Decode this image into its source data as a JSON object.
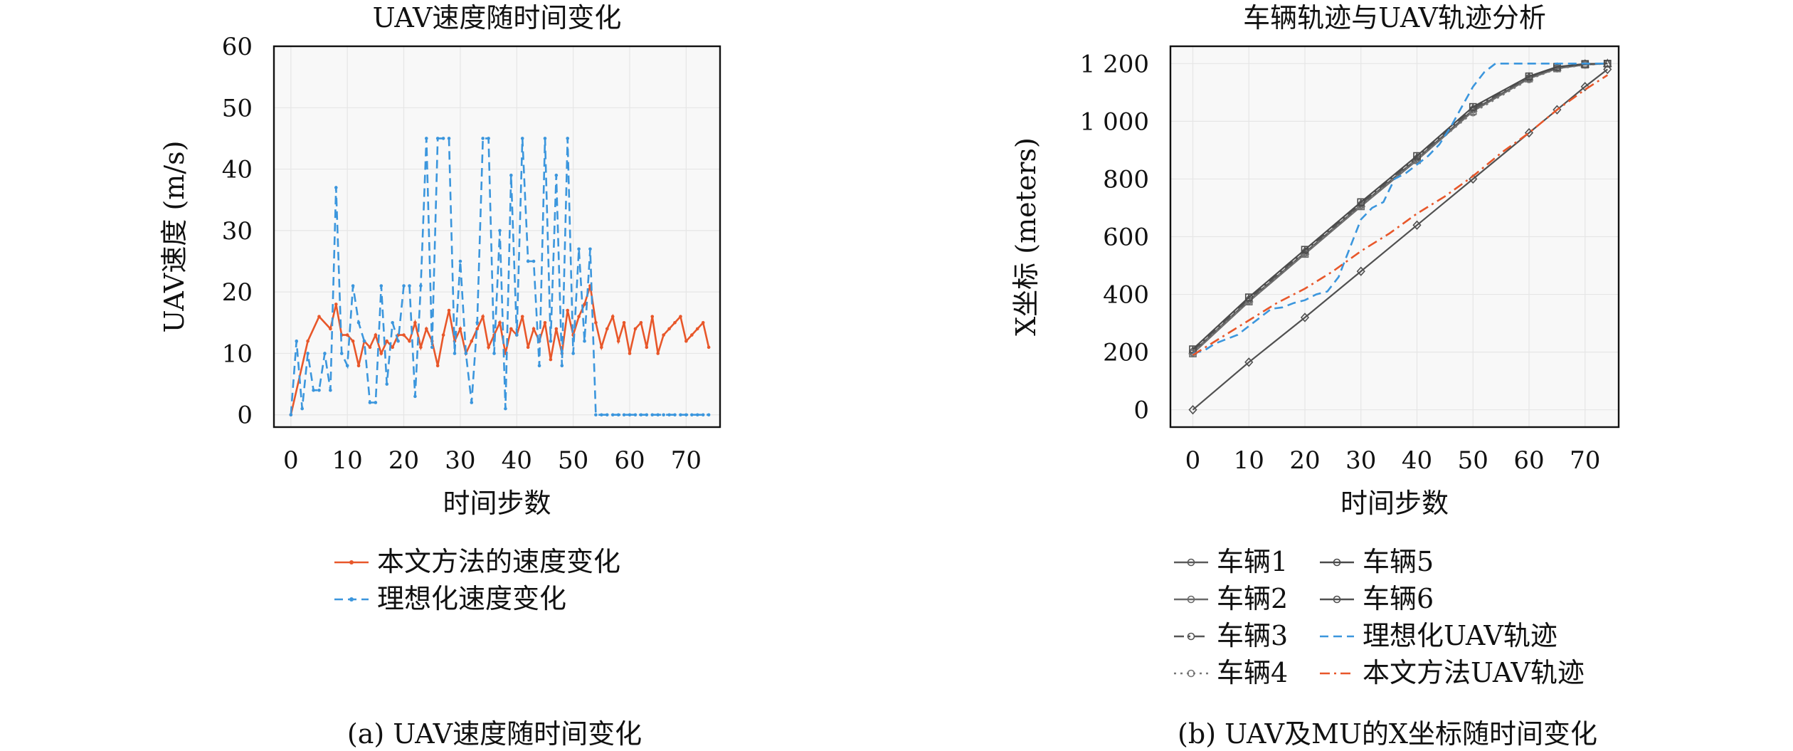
{
  "captions": {
    "a": "(a) UAV速度随时间变化",
    "b": "(b) UAV及MU的X坐标随时间变化"
  },
  "chart_data": [
    {
      "type": "line",
      "title": "UAV速度随时间变化",
      "xlabel": "时间步数",
      "ylabel": "UAV速度 (m/s)",
      "xlim": [
        -3,
        76
      ],
      "ylim": [
        -2,
        60
      ],
      "xticks": [
        0,
        10,
        20,
        30,
        40,
        50,
        60,
        70
      ],
      "yticks": [
        0,
        10,
        20,
        30,
        40,
        50,
        60
      ],
      "grid": true,
      "legend_position": "below",
      "series": [
        {
          "name": "本文方法的速度变化",
          "color": "#e8572a",
          "dash": "solid",
          "x": [
            0,
            3,
            5,
            7,
            8,
            9,
            10,
            11,
            12,
            13,
            14,
            15,
            16,
            17,
            18,
            19,
            20,
            21,
            22,
            23,
            24,
            25,
            26,
            27,
            28,
            29,
            30,
            31,
            32,
            33,
            34,
            35,
            36,
            37,
            38,
            39,
            40,
            41,
            42,
            43,
            44,
            45,
            46,
            47,
            48,
            49,
            50,
            51,
            52,
            53,
            54,
            55,
            56,
            57,
            58,
            59,
            60,
            61,
            62,
            63,
            64,
            65,
            66,
            67,
            68,
            69,
            70,
            71,
            72,
            73,
            74
          ],
          "values": [
            0,
            12,
            16,
            14,
            18,
            13,
            13,
            12,
            8,
            12,
            11,
            13,
            10,
            12,
            11,
            13,
            13,
            12,
            15,
            11,
            14,
            12,
            8,
            13,
            17,
            12,
            14,
            10,
            12,
            14,
            16,
            11,
            13,
            15,
            10,
            14,
            13,
            16,
            11,
            14,
            12,
            15,
            9,
            14,
            10,
            17,
            13,
            16,
            18,
            21,
            15,
            11,
            14,
            16,
            12,
            15,
            10,
            14,
            15,
            11,
            16,
            10,
            13,
            14,
            15,
            16,
            12,
            13,
            14,
            15,
            11
          ],
          "marker": "small-dot"
        },
        {
          "name": "理想化速度变化",
          "color": "#3b96dd",
          "dash": "dashed",
          "x": [
            0,
            1,
            2,
            3,
            4,
            5,
            6,
            7,
            8,
            9,
            10,
            11,
            12,
            13,
            14,
            15,
            16,
            17,
            18,
            19,
            20,
            21,
            22,
            23,
            24,
            25,
            26,
            27,
            28,
            29,
            30,
            31,
            32,
            33,
            34,
            35,
            36,
            37,
            38,
            39,
            40,
            41,
            42,
            43,
            44,
            45,
            46,
            47,
            48,
            49,
            50,
            51,
            52,
            53,
            54,
            55,
            56,
            57,
            58,
            59,
            60,
            61,
            62,
            63,
            64,
            65,
            66,
            67,
            68,
            69,
            70,
            71,
            72,
            73,
            74
          ],
          "values": [
            0,
            12,
            1,
            10,
            4,
            4,
            10,
            4,
            37,
            10,
            8,
            21,
            15,
            12,
            2,
            2,
            21,
            5,
            15,
            12,
            21,
            21,
            3,
            21,
            45,
            11,
            45,
            45,
            45,
            10,
            25,
            10,
            2,
            15,
            45,
            45,
            10,
            30,
            1,
            39,
            13,
            45,
            25,
            25,
            8,
            45,
            12,
            39,
            8,
            45,
            10,
            27,
            12,
            27,
            0,
            0,
            0,
            0,
            0,
            0,
            0,
            0,
            0,
            0,
            0,
            0,
            0,
            0,
            0,
            0,
            0,
            0,
            0,
            0,
            0
          ],
          "marker": "small-dot"
        }
      ]
    },
    {
      "type": "line",
      "title": "车辆轨迹与UAV轨迹分析",
      "xlabel": "时间步数",
      "ylabel": "X坐标 (meters)",
      "xlim": [
        -4,
        76
      ],
      "ylim": [
        -60,
        1260
      ],
      "xticks": [
        0,
        10,
        20,
        30,
        40,
        50,
        60,
        70
      ],
      "yticks": [
        0,
        200,
        400,
        600,
        800,
        1000,
        1200
      ],
      "ytick_labels": [
        "0",
        "200",
        "400",
        "600",
        "800",
        "1 000",
        "1 200"
      ],
      "grid": true,
      "legend_position": "below, two columns",
      "series": [
        {
          "name": "车辆1",
          "color": "#5a5a5a",
          "dash": "solid",
          "marker": "circle",
          "x": [
            0,
            10,
            20,
            30,
            40,
            50,
            60,
            65,
            70,
            74
          ],
          "values": [
            200,
            380,
            545,
            710,
            870,
            1040,
            1150,
            1185,
            1197,
            1200
          ]
        },
        {
          "name": "车辆2",
          "color": "#6a6a6a",
          "dash": "solid",
          "marker": "square",
          "x": [
            0,
            10,
            20,
            30,
            40,
            50,
            60,
            65,
            70,
            74
          ],
          "values": [
            195,
            375,
            540,
            705,
            865,
            1035,
            1148,
            1183,
            1196,
            1200
          ]
        },
        {
          "name": "车辆3",
          "color": "#555555",
          "dash": "dashdot",
          "marker": "triangle",
          "x": [
            0,
            10,
            20,
            30,
            40,
            50,
            60,
            65,
            70,
            74
          ],
          "values": [
            205,
            385,
            550,
            715,
            875,
            1045,
            1153,
            1187,
            1198,
            1200
          ]
        },
        {
          "name": "车辆4",
          "color": "#777777",
          "dash": "dotted",
          "marker": "circle",
          "x": [
            0,
            10,
            20,
            30,
            40,
            50,
            60,
            65,
            70,
            74
          ],
          "values": [
            198,
            378,
            543,
            708,
            868,
            1030,
            1145,
            1182,
            1195,
            1200
          ]
        },
        {
          "name": "车辆5",
          "color": "#4a4a4a",
          "dash": "solid",
          "marker": "square",
          "x": [
            0,
            10,
            20,
            30,
            40,
            50,
            60,
            65,
            70,
            74
          ],
          "values": [
            210,
            390,
            555,
            720,
            880,
            1050,
            1156,
            1189,
            1199,
            1200
          ]
        },
        {
          "name": "车辆6",
          "color": "#505050",
          "dash": "solid",
          "marker": "diamond",
          "x": [
            0,
            10,
            20,
            30,
            40,
            50,
            60,
            65,
            70,
            74
          ],
          "values": [
            0,
            165,
            320,
            480,
            640,
            800,
            960,
            1040,
            1120,
            1180
          ]
        },
        {
          "name": "理想化UAV轨迹",
          "color": "#3b96dd",
          "dash": "dashed",
          "marker": "none",
          "x": [
            0,
            2,
            4,
            6,
            8,
            10,
            12,
            14,
            16,
            18,
            20,
            22,
            24,
            26,
            28,
            30,
            32,
            34,
            36,
            38,
            40,
            42,
            44,
            46,
            48,
            50,
            52,
            54,
            56,
            60,
            65,
            70,
            74
          ],
          "values": [
            195,
            205,
            230,
            245,
            260,
            290,
            320,
            350,
            355,
            370,
            380,
            400,
            410,
            460,
            560,
            660,
            700,
            720,
            800,
            820,
            850,
            880,
            920,
            980,
            1050,
            1120,
            1170,
            1200,
            1200,
            1200,
            1200,
            1200,
            1200
          ]
        },
        {
          "name": "本文方法UAV轨迹",
          "color": "#e8572a",
          "dash": "dashdot",
          "marker": "none",
          "x": [
            0,
            5,
            10,
            15,
            20,
            25,
            30,
            35,
            40,
            45,
            50,
            55,
            60,
            65,
            70,
            74
          ],
          "values": [
            190,
            250,
            310,
            370,
            420,
            480,
            550,
            610,
            680,
            740,
            810,
            890,
            960,
            1040,
            1110,
            1160
          ]
        }
      ]
    }
  ]
}
